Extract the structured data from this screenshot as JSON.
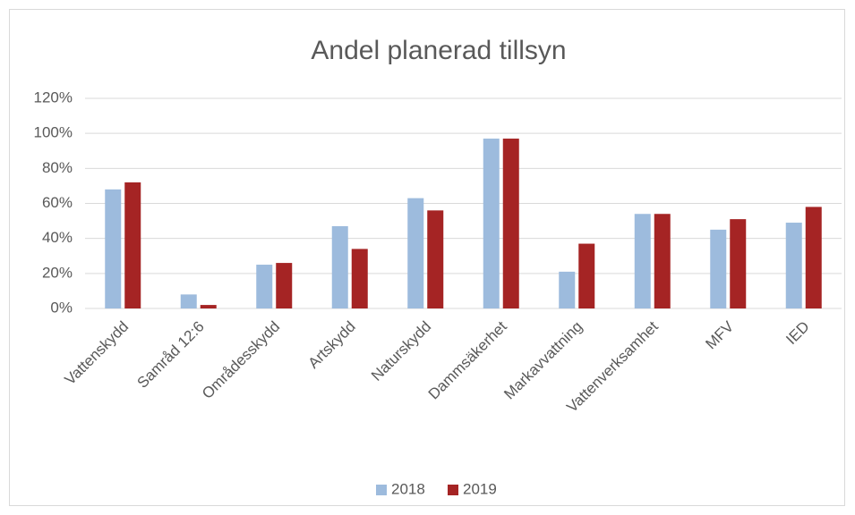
{
  "chart_data": {
    "type": "bar",
    "title": "Andel planerad tillsyn",
    "categories": [
      "Vattenskydd",
      "Samråd 12:6",
      "Områdesskydd",
      "Artskydd",
      "Naturskydd",
      "Dammsäkerhet",
      "Markavvattning",
      "Vattenverksamhet",
      "MFV",
      "IED"
    ],
    "series": [
      {
        "name": "2018",
        "color": "#9dbbdd",
        "values": [
          68,
          8,
          25,
          47,
          63,
          97,
          21,
          54,
          45,
          49
        ]
      },
      {
        "name": "2019",
        "color": "#a52424",
        "values": [
          72,
          2,
          26,
          34,
          56,
          97,
          37,
          54,
          51,
          58
        ]
      }
    ],
    "ylim": [
      0,
      120
    ],
    "yticks": [
      {
        "value": 0,
        "label": "0%"
      },
      {
        "value": 20,
        "label": "20%"
      },
      {
        "value": 40,
        "label": "40%"
      },
      {
        "value": 60,
        "label": "60%"
      },
      {
        "value": 80,
        "label": "80%"
      },
      {
        "value": 100,
        "label": "100%"
      },
      {
        "value": 120,
        "label": "120%"
      }
    ],
    "grid": true,
    "legend": "bottom"
  }
}
